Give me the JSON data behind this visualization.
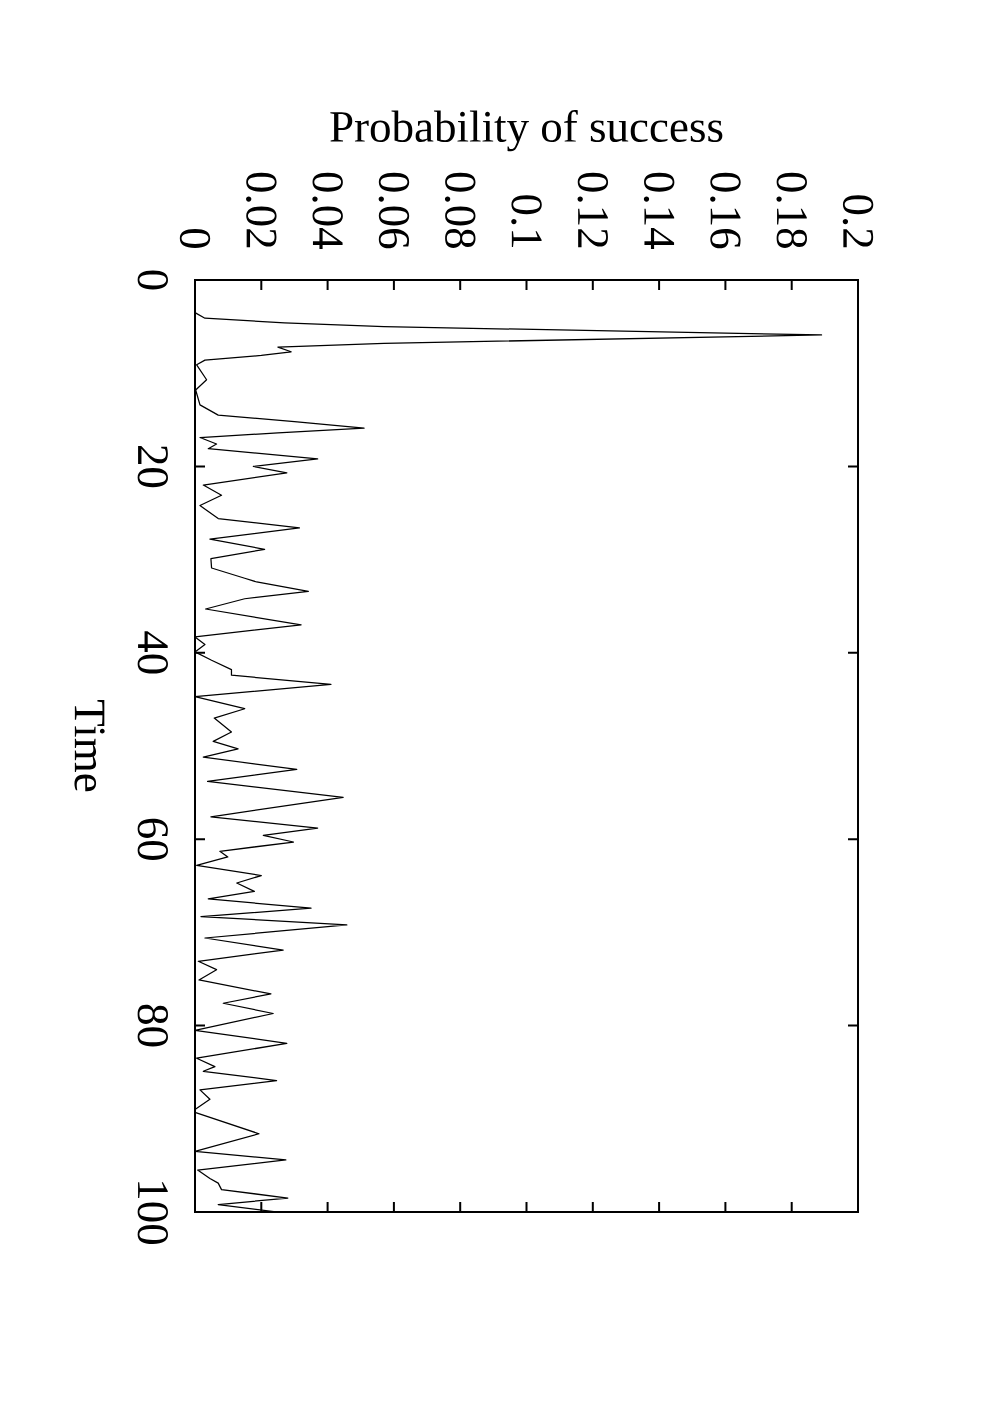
{
  "chart_data": {
    "type": "line",
    "xlabel": "Probability of success",
    "ylabel": "Time",
    "x": [
      0,
      0,
      0.003,
      0.027,
      0.057,
      0.189,
      0.057,
      0.025,
      0.029,
      0.02,
      0.003,
      0.0005,
      0.0035,
      0.0002,
      0.0015,
      0.007,
      0.03,
      0.051,
      0.025,
      0.0015,
      0.0065,
      0.004,
      0.037,
      0.0176,
      0.0277,
      0.0025,
      0.008,
      0.0015,
      0.007,
      0.0315,
      0.0045,
      0.021,
      0.0048,
      0.005,
      0.015,
      0.0186,
      0.0342,
      0.015,
      0.0032,
      0.032,
      0,
      0.003,
      0,
      0.005,
      0.011,
      0.011,
      0.041,
      0,
      0.015,
      0.0058,
      0.011,
      0.0055,
      0.013,
      0.0025,
      0.0307,
      0.0038,
      0.0447,
      0.0048,
      0.037,
      0.0206,
      0.0297,
      0.0075,
      0.0099,
      0.0005,
      0.02,
      0.0126,
      0.0179,
      0.004,
      0.035,
      0.0018,
      0.0458,
      0.003,
      0.0266,
      0.001,
      0.0065,
      0.0012,
      0.0229,
      0.0085,
      0.0236,
      0,
      0.0277,
      0.0005,
      0.006,
      0.0025,
      0.0246,
      0.0015,
      0.0045,
      0,
      0,
      0.0193,
      0,
      0.0274,
      0.0008,
      0.0045,
      0.007,
      0.008,
      0.028,
      0.007,
      0.025
    ],
    "values": [
      0,
      3.5,
      4.1,
      4.6,
      5.0,
      5.9,
      6.8,
      7.2,
      7.7,
      8.1,
      8.6,
      9.1,
      10.7,
      11.8,
      13.4,
      14.5,
      15.2,
      15.9,
      16.4,
      16.9,
      17.6,
      18.1,
      19.2,
      20.0,
      20.7,
      22.0,
      23.1,
      24.2,
      25.6,
      26.6,
      27.8,
      28.9,
      29.9,
      30.9,
      32.0,
      32.4,
      33.4,
      34.2,
      35.3,
      37.0,
      38.3,
      39.1,
      39.9,
      40.8,
      41.8,
      42.4,
      43.4,
      44.7,
      46.0,
      47.0,
      48.5,
      49.5,
      50.3,
      51.2,
      52.5,
      53.8,
      55.5,
      57.6,
      58.8,
      59.6,
      60.3,
      61.3,
      61.9,
      62.8,
      63.9,
      64.7,
      65.6,
      66.4,
      67.4,
      68.3,
      69.2,
      70.6,
      71.9,
      73.1,
      74.0,
      75.1,
      76.6,
      77.6,
      78.7,
      80.5,
      81.9,
      83.5,
      84.4,
      84.9,
      85.9,
      86.9,
      87.9,
      89.0,
      89.3,
      91.6,
      93.5,
      94.4,
      95.5,
      96.4,
      96.9,
      97.6,
      98.5,
      99.2,
      100
    ],
    "color": "#000000",
    "xlim": [
      0,
      0.2
    ],
    "ylim": [
      100,
      0
    ],
    "xticks": [
      0,
      0.02,
      0.04,
      0.06,
      0.08,
      0.1,
      0.12,
      0.14,
      0.16,
      0.18,
      0.2
    ],
    "yticks": [
      0,
      20,
      40,
      60,
      80,
      100
    ]
  }
}
